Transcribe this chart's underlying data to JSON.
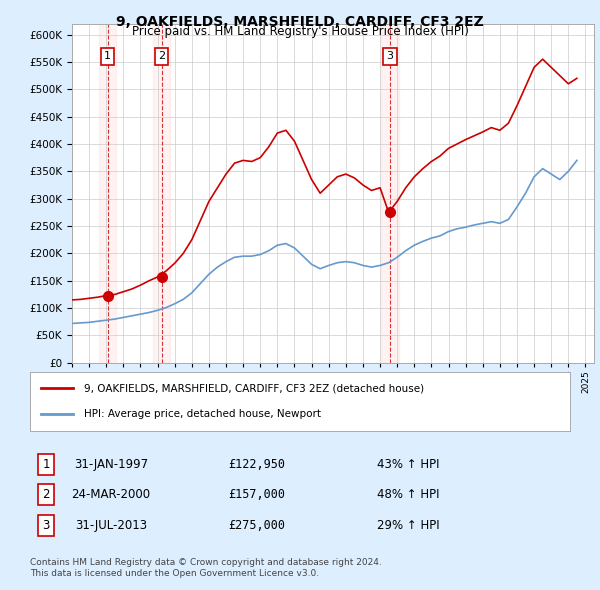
{
  "title": "9, OAKFIELDS, MARSHFIELD, CARDIFF, CF3 2EZ",
  "subtitle": "Price paid vs. HM Land Registry's House Price Index (HPI)",
  "legend_entry1": "9, OAKFIELDS, MARSHFIELD, CARDIFF, CF3 2EZ (detached house)",
  "legend_entry2": "HPI: Average price, detached house, Newport",
  "footer1": "Contains HM Land Registry data © Crown copyright and database right 2024.",
  "footer2": "This data is licensed under the Open Government Licence v3.0.",
  "transactions": [
    {
      "num": 1,
      "date": "31-JAN-1997",
      "price": 122950,
      "hpi_pct": "43% ↑ HPI",
      "year": 1997.08
    },
    {
      "num": 2,
      "date": "24-MAR-2000",
      "price": 157000,
      "hpi_pct": "48% ↑ HPI",
      "year": 2000.23
    },
    {
      "num": 3,
      "date": "31-JUL-2013",
      "price": 275000,
      "hpi_pct": "29% ↑ HPI",
      "year": 2013.58
    }
  ],
  "hpi_line_color": "#6699cc",
  "price_line_color": "#cc0000",
  "vline_color": "#cc0000",
  "background_color": "#ddeeff",
  "plot_bg_color": "#ffffff",
  "ylim": [
    0,
    620000
  ],
  "xlim_start": 1995.0,
  "xlim_end": 2025.5,
  "hpi_data": {
    "years": [
      1995.0,
      1995.5,
      1996.0,
      1996.5,
      1997.0,
      1997.5,
      1998.0,
      1998.5,
      1999.0,
      1999.5,
      2000.0,
      2000.5,
      2001.0,
      2001.5,
      2002.0,
      2002.5,
      2003.0,
      2003.5,
      2004.0,
      2004.5,
      2005.0,
      2005.5,
      2006.0,
      2006.5,
      2007.0,
      2007.5,
      2008.0,
      2008.5,
      2009.0,
      2009.5,
      2010.0,
      2010.5,
      2011.0,
      2011.5,
      2012.0,
      2012.5,
      2013.0,
      2013.5,
      2014.0,
      2014.5,
      2015.0,
      2015.5,
      2016.0,
      2016.5,
      2017.0,
      2017.5,
      2018.0,
      2018.5,
      2019.0,
      2019.5,
      2020.0,
      2020.5,
      2021.0,
      2021.5,
      2022.0,
      2022.5,
      2023.0,
      2023.5,
      2024.0,
      2024.5
    ],
    "values": [
      72000,
      73000,
      74000,
      76000,
      78000,
      80000,
      83000,
      86000,
      89000,
      92000,
      96000,
      101000,
      108000,
      116000,
      128000,
      145000,
      162000,
      175000,
      185000,
      193000,
      195000,
      195000,
      198000,
      205000,
      215000,
      218000,
      210000,
      195000,
      180000,
      172000,
      178000,
      183000,
      185000,
      183000,
      178000,
      175000,
      178000,
      183000,
      193000,
      205000,
      215000,
      222000,
      228000,
      232000,
      240000,
      245000,
      248000,
      252000,
      255000,
      258000,
      255000,
      262000,
      285000,
      310000,
      340000,
      355000,
      345000,
      335000,
      350000,
      370000
    ]
  },
  "price_data": {
    "years": [
      1995.0,
      1995.5,
      1996.0,
      1996.5,
      1997.0,
      1997.5,
      1998.0,
      1998.5,
      1999.0,
      1999.5,
      2000.0,
      2000.5,
      2001.0,
      2001.5,
      2002.0,
      2002.5,
      2003.0,
      2003.5,
      2004.0,
      2004.5,
      2005.0,
      2005.5,
      2006.0,
      2006.5,
      2007.0,
      2007.5,
      2008.0,
      2008.5,
      2009.0,
      2009.5,
      2010.0,
      2010.5,
      2011.0,
      2011.5,
      2012.0,
      2012.5,
      2013.0,
      2013.5,
      2014.0,
      2014.5,
      2015.0,
      2015.5,
      2016.0,
      2016.5,
      2017.0,
      2017.5,
      2018.0,
      2018.5,
      2019.0,
      2019.5,
      2020.0,
      2020.5,
      2021.0,
      2021.5,
      2022.0,
      2022.5,
      2023.0,
      2023.5,
      2024.0,
      2024.5
    ],
    "values": [
      115000,
      116000,
      118000,
      120000,
      122950,
      125000,
      130000,
      135000,
      142000,
      150000,
      157000,
      168000,
      182000,
      200000,
      225000,
      260000,
      295000,
      320000,
      345000,
      365000,
      370000,
      368000,
      375000,
      395000,
      420000,
      425000,
      405000,
      370000,
      335000,
      310000,
      325000,
      340000,
      345000,
      338000,
      325000,
      315000,
      320000,
      275000,
      295000,
      320000,
      340000,
      355000,
      368000,
      378000,
      392000,
      400000,
      408000,
      415000,
      422000,
      430000,
      425000,
      438000,
      470000,
      505000,
      540000,
      555000,
      540000,
      525000,
      510000,
      520000
    ]
  }
}
